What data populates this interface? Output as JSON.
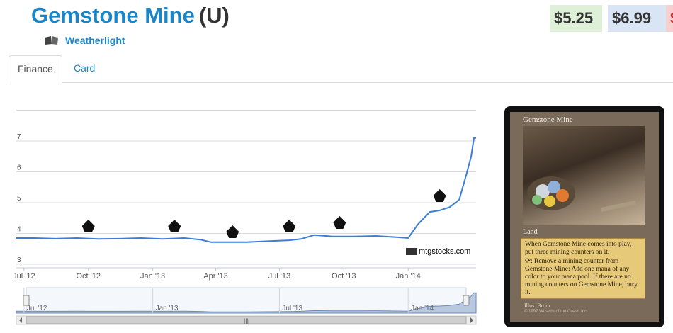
{
  "header": {
    "card_name": "Gemstone Mine",
    "rarity": "(U)",
    "set_name": "Weatherlight",
    "set_icon": "weatherlight-set-icon"
  },
  "prices": {
    "low": "$5.25",
    "avg": "$6.99",
    "high": "$"
  },
  "tabs": [
    {
      "label": "Finance",
      "active": true
    },
    {
      "label": "Card",
      "active": false
    }
  ],
  "chart_data": {
    "type": "line",
    "title": "",
    "xlabel": "",
    "ylabel": "",
    "ylim": [
      3,
      8
    ],
    "yticks": [
      "3",
      "4",
      "5",
      "6",
      "7"
    ],
    "xticks": [
      "Jul '12",
      "Oct '12",
      "Jan '13",
      "Apr '13",
      "Jul '13",
      "Oct '13",
      "Jan '14"
    ],
    "navigator_labels": [
      "Jul '12",
      "Jan '13",
      "Jul '13",
      "Jan '14"
    ],
    "series": [
      {
        "color": "#3b7dd8",
        "x": [
          "2012-06-20",
          "2012-07-15",
          "2012-08-15",
          "2012-09-15",
          "2012-10-15",
          "2012-11-15",
          "2012-12-15",
          "2013-01-15",
          "2013-02-15",
          "2013-03-10",
          "2013-03-25",
          "2013-04-15",
          "2013-05-15",
          "2013-06-15",
          "2013-07-15",
          "2013-08-01",
          "2013-08-20",
          "2013-09-15",
          "2013-10-15",
          "2013-11-15",
          "2013-12-15",
          "2014-01-01",
          "2014-01-15",
          "2014-02-01",
          "2014-02-15",
          "2014-03-01",
          "2014-03-15",
          "2014-03-25",
          "2014-04-01",
          "2014-04-05",
          "2014-04-08"
        ],
        "y": [
          3.85,
          3.85,
          3.83,
          3.85,
          3.82,
          3.83,
          3.85,
          3.82,
          3.85,
          3.8,
          3.72,
          3.72,
          3.72,
          3.75,
          3.78,
          3.82,
          3.95,
          3.9,
          3.9,
          3.92,
          3.88,
          3.85,
          4.3,
          4.7,
          4.75,
          4.85,
          5.1,
          5.9,
          6.5,
          7.1,
          7.1
        ]
      }
    ],
    "flags": [
      "set-release-flag-1",
      "set-release-flag-2",
      "set-release-flag-3",
      "set-release-flag-4",
      "set-release-flag-5",
      "set-release-flag-6"
    ],
    "grid": true,
    "watermark": "mtgstocks.com"
  },
  "card": {
    "name": "Gemstone Mine",
    "type_line": "Land",
    "rules_text_1": "When Gemstone Mine comes into play, put three mining counters on it.",
    "rules_text_2": ": Remove a mining counter from Gemstone Mine: Add one mana of any color to your mana pool. If there are no mining counters on Gemstone Mine, bury it.",
    "illustrator": "Illus. Brom",
    "copyright": "© 1997 Wizards of the Coast, Inc."
  },
  "colors": {
    "accent": "#1a85c8",
    "line": "#3b7dd8",
    "low_bg": "#dff0d8",
    "avg_bg": "#d9e4f5",
    "high_bg": "#f5d0cf"
  }
}
